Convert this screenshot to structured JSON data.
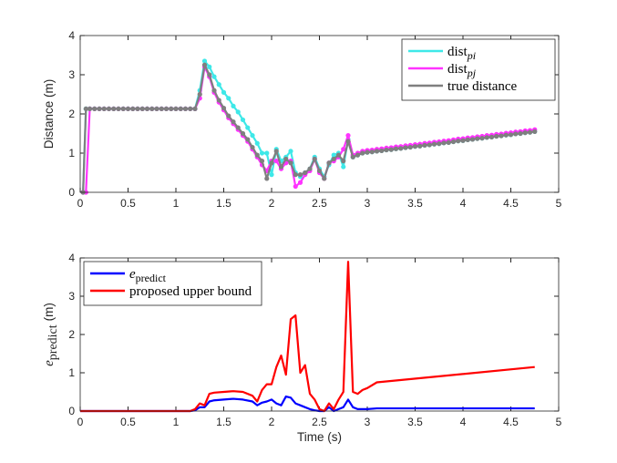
{
  "chart_data": [
    {
      "type": "line",
      "ylabel": "Distance (m)",
      "legend": "northeast",
      "markers": true,
      "xlim": [
        0,
        5
      ],
      "xticks": [
        0,
        0.5,
        1,
        1.5,
        2,
        2.5,
        3,
        3.5,
        4,
        4.5,
        5
      ],
      "ylim": [
        0,
        4
      ],
      "yticks": [
        0,
        1,
        2,
        3,
        4
      ],
      "x": [
        0.03,
        0.06,
        0.1,
        0.15,
        0.2,
        0.25,
        0.3,
        0.35,
        0.4,
        0.45,
        0.5,
        0.55,
        0.6,
        0.65,
        0.7,
        0.75,
        0.8,
        0.85,
        0.9,
        0.95,
        1.0,
        1.05,
        1.1,
        1.15,
        1.2,
        1.25,
        1.3,
        1.35,
        1.4,
        1.45,
        1.5,
        1.55,
        1.6,
        1.65,
        1.7,
        1.75,
        1.8,
        1.85,
        1.9,
        1.95,
        2.0,
        2.05,
        2.1,
        2.15,
        2.2,
        2.25,
        2.3,
        2.35,
        2.4,
        2.45,
        2.5,
        2.55,
        2.6,
        2.65,
        2.7,
        2.75,
        2.8,
        2.85,
        2.9,
        2.95,
        3.0,
        3.05,
        3.1,
        3.15,
        3.2,
        3.25,
        3.3,
        3.35,
        3.4,
        3.45,
        3.5,
        3.55,
        3.6,
        3.65,
        3.7,
        3.75,
        3.8,
        3.85,
        3.9,
        3.95,
        4.0,
        4.05,
        4.1,
        4.15,
        4.2,
        4.25,
        4.3,
        4.35,
        4.4,
        4.45,
        4.5,
        4.55,
        4.6,
        4.65,
        4.7,
        4.75
      ],
      "series": [
        {
          "name": "dist",
          "subscript": "pi",
          "color": "#3ee8e8",
          "values": [
            0,
            2.13,
            2.13,
            2.13,
            2.13,
            2.13,
            2.13,
            2.13,
            2.13,
            2.13,
            2.13,
            2.13,
            2.13,
            2.13,
            2.13,
            2.13,
            2.13,
            2.13,
            2.13,
            2.13,
            2.13,
            2.13,
            2.13,
            2.13,
            2.13,
            2.6,
            3.35,
            3.2,
            2.95,
            2.75,
            2.55,
            2.4,
            2.2,
            2.05,
            1.85,
            1.65,
            1.45,
            1.25,
            1.0,
            1.0,
            0.45,
            1.1,
            0.8,
            0.9,
            1.05,
            0.5,
            0.4,
            0.5,
            0.6,
            0.9,
            0.6,
            0.4,
            0.7,
            0.95,
            1.0,
            0.65,
            1.35,
            0.9,
            0.95,
            1.0,
            1.02,
            1.03,
            1.05,
            1.06,
            1.08,
            1.09,
            1.11,
            1.12,
            1.14,
            1.15,
            1.17,
            1.18,
            1.2,
            1.21,
            1.23,
            1.24,
            1.26,
            1.27,
            1.29,
            1.31,
            1.32,
            1.34,
            1.35,
            1.37,
            1.38,
            1.4,
            1.41,
            1.43,
            1.44,
            1.46,
            1.47,
            1.49,
            1.5,
            1.52,
            1.53,
            1.55
          ]
        },
        {
          "name": "dist",
          "subscript": "pj",
          "color": "#ff33ff",
          "values": [
            0,
            0,
            2.13,
            2.13,
            2.13,
            2.13,
            2.13,
            2.13,
            2.13,
            2.13,
            2.13,
            2.13,
            2.13,
            2.13,
            2.13,
            2.13,
            2.13,
            2.13,
            2.13,
            2.13,
            2.13,
            2.13,
            2.13,
            2.13,
            2.13,
            2.4,
            3.2,
            2.95,
            2.55,
            2.3,
            2.1,
            1.9,
            1.75,
            1.6,
            1.45,
            1.3,
            1.1,
            0.9,
            0.7,
            0.55,
            0.8,
            0.8,
            0.6,
            0.75,
            0.8,
            0.15,
            0.25,
            0.45,
            0.55,
            0.85,
            0.5,
            0.35,
            0.75,
            0.8,
            0.9,
            1.1,
            1.45,
            0.95,
            1.0,
            1.05,
            1.07,
            1.08,
            1.1,
            1.11,
            1.13,
            1.14,
            1.16,
            1.17,
            1.19,
            1.2,
            1.22,
            1.23,
            1.25,
            1.26,
            1.28,
            1.29,
            1.31,
            1.32,
            1.34,
            1.36,
            1.37,
            1.39,
            1.4,
            1.42,
            1.43,
            1.45,
            1.46,
            1.48,
            1.49,
            1.51,
            1.52,
            1.54,
            1.55,
            1.57,
            1.58,
            1.6
          ]
        },
        {
          "name": "true distance",
          "color": "#7f7f7f",
          "values": [
            0,
            2.13,
            2.13,
            2.13,
            2.13,
            2.13,
            2.13,
            2.13,
            2.13,
            2.13,
            2.13,
            2.13,
            2.13,
            2.13,
            2.13,
            2.13,
            2.13,
            2.13,
            2.13,
            2.13,
            2.13,
            2.13,
            2.13,
            2.13,
            2.13,
            2.5,
            3.25,
            3.0,
            2.6,
            2.35,
            2.15,
            1.95,
            1.8,
            1.65,
            1.5,
            1.35,
            1.15,
            0.95,
            0.8,
            0.35,
            0.75,
            1.05,
            0.65,
            0.85,
            0.75,
            0.45,
            0.45,
            0.5,
            0.6,
            0.85,
            0.55,
            0.35,
            0.75,
            0.85,
            0.95,
            0.8,
            1.3,
            0.9,
            0.95,
            1.0,
            1.02,
            1.03,
            1.05,
            1.06,
            1.08,
            1.09,
            1.11,
            1.12,
            1.14,
            1.15,
            1.17,
            1.18,
            1.2,
            1.21,
            1.23,
            1.24,
            1.26,
            1.27,
            1.29,
            1.31,
            1.32,
            1.34,
            1.35,
            1.37,
            1.38,
            1.4,
            1.41,
            1.43,
            1.44,
            1.46,
            1.47,
            1.49,
            1.5,
            1.52,
            1.53,
            1.55
          ]
        }
      ]
    },
    {
      "type": "line",
      "xlabel": "Time (s)",
      "ylabel": "e",
      "ylabel_subscript": "predict",
      "ylabel_unit": "(m)",
      "legend": "northwest",
      "markers": false,
      "xlim": [
        0,
        5
      ],
      "xticks": [
        0,
        0.5,
        1,
        1.5,
        2,
        2.5,
        3,
        3.5,
        4,
        4.5,
        5
      ],
      "ylim": [
        0,
        4
      ],
      "yticks": [
        0,
        1,
        2,
        3,
        4
      ],
      "x": [
        0,
        1.15,
        1.2,
        1.25,
        1.3,
        1.35,
        1.4,
        1.5,
        1.6,
        1.7,
        1.8,
        1.85,
        1.9,
        1.95,
        2.0,
        2.05,
        2.1,
        2.15,
        2.2,
        2.25,
        2.3,
        2.35,
        2.4,
        2.45,
        2.5,
        2.55,
        2.6,
        2.65,
        2.7,
        2.75,
        2.8,
        2.85,
        2.9,
        2.95,
        3.0,
        3.1,
        4.75
      ],
      "series": [
        {
          "name": "e",
          "subscript": "predict",
          "color": "#0000ff",
          "values": [
            0,
            0,
            0.02,
            0.1,
            0.1,
            0.25,
            0.28,
            0.3,
            0.32,
            0.3,
            0.25,
            0.15,
            0.22,
            0.25,
            0.3,
            0.2,
            0.15,
            0.38,
            0.35,
            0.2,
            0.15,
            0.1,
            0.05,
            0.02,
            0,
            0,
            0.1,
            0,
            0.05,
            0.1,
            0.3,
            0.1,
            0.05,
            0.05,
            0.05,
            0.07,
            0.07
          ]
        },
        {
          "name": "proposed upper bound",
          "color": "#ff0000",
          "values": [
            0,
            0,
            0.05,
            0.2,
            0.15,
            0.45,
            0.48,
            0.5,
            0.52,
            0.5,
            0.4,
            0.25,
            0.55,
            0.7,
            0.7,
            1.15,
            1.45,
            0.95,
            2.4,
            2.5,
            1.0,
            1.2,
            0.45,
            0.3,
            0.05,
            0,
            0.2,
            0.05,
            0.3,
            0.5,
            3.9,
            0.5,
            0.45,
            0.55,
            0.6,
            0.75,
            1.15
          ]
        }
      ]
    }
  ]
}
